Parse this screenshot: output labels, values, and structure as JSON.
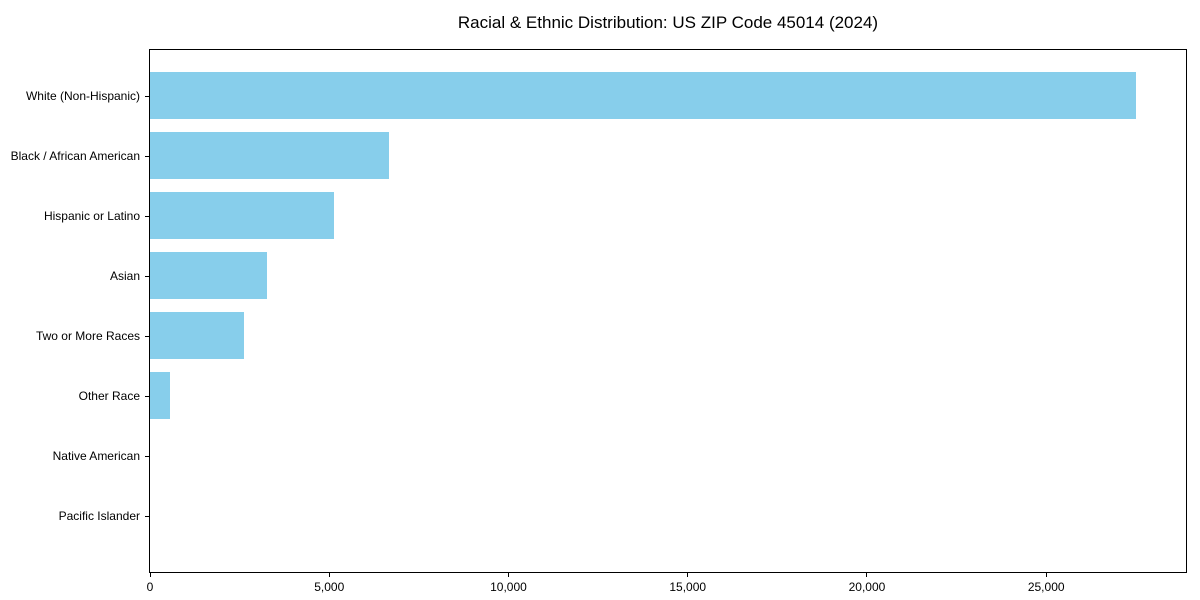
{
  "chart_data": {
    "type": "bar",
    "orientation": "horizontal",
    "title": "Racial & Ethnic Distribution: US ZIP Code 45014 (2024)",
    "xlabel": "",
    "ylabel": "",
    "categories": [
      "White (Non-Hispanic)",
      "Black / African American",
      "Hispanic or Latino",
      "Asian",
      "Two or More Races",
      "Other Race",
      "Native American",
      "Pacific Islander"
    ],
    "values": [
      27500,
      6680,
      5120,
      3260,
      2630,
      565,
      0,
      0
    ],
    "xlim": [
      0,
      28900
    ],
    "x_ticks": [
      0,
      5000,
      10000,
      15000,
      20000,
      25000
    ],
    "x_tick_labels": [
      "0",
      "5,000",
      "10,000",
      "15,000",
      "20,000",
      "25,000"
    ],
    "bar_color": "#87CEEB",
    "axis_color": "#000000",
    "grid": false,
    "legend": null
  }
}
